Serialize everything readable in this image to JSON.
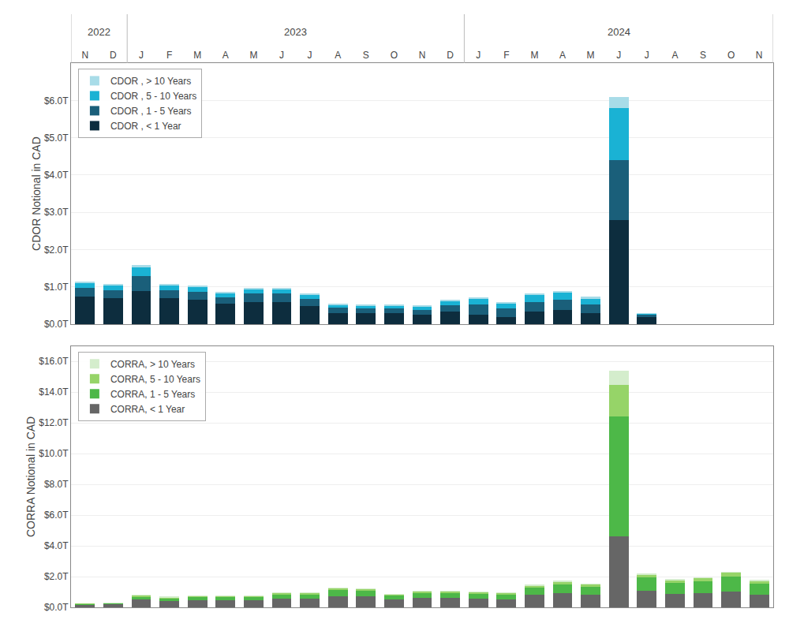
{
  "chart_data": [
    {
      "type": "bar",
      "stacked": true,
      "categories": [
        "N",
        "D",
        "J",
        "F",
        "M",
        "A",
        "M",
        "J",
        "J",
        "A",
        "S",
        "O",
        "N",
        "D",
        "J",
        "F",
        "M",
        "A",
        "M",
        "J",
        "J",
        "A",
        "S",
        "O",
        "N"
      ],
      "annotations": [
        {
          "text": "2022",
          "start": 0,
          "end": 1
        },
        {
          "text": "2023",
          "start": 2,
          "end": 13
        },
        {
          "text": "2024",
          "start": 14,
          "end": 24
        }
      ],
      "ylabel": "CDOR Notional in CAD",
      "ylim": [
        0,
        7.0
      ],
      "yticks": [
        {
          "value": 0,
          "label": "$0.0T"
        },
        {
          "value": 1.0,
          "label": "$1.0T"
        },
        {
          "value": 2.0,
          "label": "$2.0T"
        },
        {
          "value": 3.0,
          "label": "$3.0T"
        },
        {
          "value": 4.0,
          "label": "$4.0T"
        },
        {
          "value": 5.0,
          "label": "$5.0T"
        },
        {
          "value": 6.0,
          "label": "$6.0T"
        }
      ],
      "grid": true,
      "legend": "upper left",
      "series": [
        {
          "name": "CDOR , < 1 Year",
          "color": "#0d2d3e",
          "values": [
            0.75,
            0.7,
            0.9,
            0.7,
            0.65,
            0.55,
            0.6,
            0.6,
            0.5,
            0.3,
            0.3,
            0.3,
            0.25,
            0.35,
            0.25,
            0.2,
            0.35,
            0.38,
            0.3,
            2.8,
            0.2,
            0.0,
            0.0,
            0.0,
            0.0
          ]
        },
        {
          "name": "CDOR , 1 - 5 Years",
          "color": "#1a5f7a",
          "values": [
            0.22,
            0.22,
            0.4,
            0.22,
            0.22,
            0.18,
            0.22,
            0.22,
            0.18,
            0.14,
            0.13,
            0.12,
            0.14,
            0.16,
            0.28,
            0.22,
            0.25,
            0.28,
            0.24,
            1.6,
            0.06,
            0.0,
            0.0,
            0.0,
            0.0
          ]
        },
        {
          "name": "CDOR , 5 - 10 Years",
          "color": "#1ab2d4",
          "values": [
            0.14,
            0.13,
            0.22,
            0.13,
            0.13,
            0.1,
            0.13,
            0.13,
            0.11,
            0.08,
            0.08,
            0.08,
            0.1,
            0.12,
            0.16,
            0.14,
            0.18,
            0.18,
            0.16,
            1.4,
            0.03,
            0.0,
            0.0,
            0.0,
            0.0
          ]
        },
        {
          "name": "CDOR , > 10 Years",
          "color": "#a8dce8",
          "values": [
            0.03,
            0.03,
            0.06,
            0.03,
            0.03,
            0.02,
            0.03,
            0.03,
            0.02,
            0.02,
            0.02,
            0.02,
            0.02,
            0.03,
            0.04,
            0.04,
            0.05,
            0.05,
            0.04,
            0.3,
            0.01,
            0.0,
            0.0,
            0.0,
            0.0
          ]
        }
      ]
    },
    {
      "type": "bar",
      "stacked": true,
      "categories": [
        "N",
        "D",
        "J",
        "F",
        "M",
        "A",
        "M",
        "J",
        "J",
        "A",
        "S",
        "O",
        "N",
        "D",
        "J",
        "F",
        "M",
        "A",
        "M",
        "J",
        "J",
        "A",
        "S",
        "O",
        "N"
      ],
      "tick_labels": "y",
      "ylabel": "CORRA Notional in CAD",
      "ylim": [
        0,
        17.0
      ],
      "yticks": [
        {
          "value": 0,
          "label": "$0.0T"
        },
        {
          "value": 2.0,
          "label": "$2.0T"
        },
        {
          "value": 4.0,
          "label": "$4.0T"
        },
        {
          "value": 6.0,
          "label": "$6.0T"
        },
        {
          "value": 8.0,
          "label": "$8.0T"
        },
        {
          "value": 10.0,
          "label": "$10.0T"
        },
        {
          "value": 12.0,
          "label": "$12.0T"
        },
        {
          "value": 14.0,
          "label": "$14.0T"
        },
        {
          "value": 16.0,
          "label": "$16.0T"
        }
      ],
      "grid": true,
      "legend": "upper left",
      "series": [
        {
          "name": "CORRA, < 1 Year",
          "color": "#666666",
          "values": [
            0.18,
            0.25,
            0.5,
            0.42,
            0.48,
            0.48,
            0.48,
            0.55,
            0.55,
            0.7,
            0.7,
            0.5,
            0.6,
            0.6,
            0.55,
            0.52,
            0.8,
            0.9,
            0.8,
            4.6,
            1.1,
            0.85,
            0.9,
            1.05,
            0.8
          ]
        },
        {
          "name": "CORRA, 1 - 5 Years",
          "color": "#4db848",
          "values": [
            0.04,
            0.04,
            0.22,
            0.2,
            0.22,
            0.22,
            0.22,
            0.3,
            0.3,
            0.45,
            0.4,
            0.28,
            0.35,
            0.35,
            0.35,
            0.35,
            0.5,
            0.6,
            0.55,
            7.8,
            0.85,
            0.75,
            0.8,
            0.95,
            0.72
          ]
        },
        {
          "name": "CORRA, 5 - 10 Years",
          "color": "#96d468",
          "values": [
            0.01,
            0.01,
            0.06,
            0.05,
            0.06,
            0.06,
            0.06,
            0.09,
            0.09,
            0.12,
            0.1,
            0.08,
            0.09,
            0.09,
            0.09,
            0.09,
            0.14,
            0.17,
            0.17,
            2.1,
            0.2,
            0.18,
            0.22,
            0.27,
            0.2
          ]
        },
        {
          "name": "CORRA, > 10 Years",
          "color": "#d4edcc",
          "values": [
            0.0,
            0.01,
            0.01,
            0.01,
            0.01,
            0.01,
            0.01,
            0.02,
            0.02,
            0.02,
            0.02,
            0.02,
            0.02,
            0.02,
            0.02,
            0.02,
            0.03,
            0.04,
            0.03,
            0.9,
            0.04,
            0.04,
            0.04,
            0.05,
            0.04
          ]
        }
      ]
    }
  ]
}
